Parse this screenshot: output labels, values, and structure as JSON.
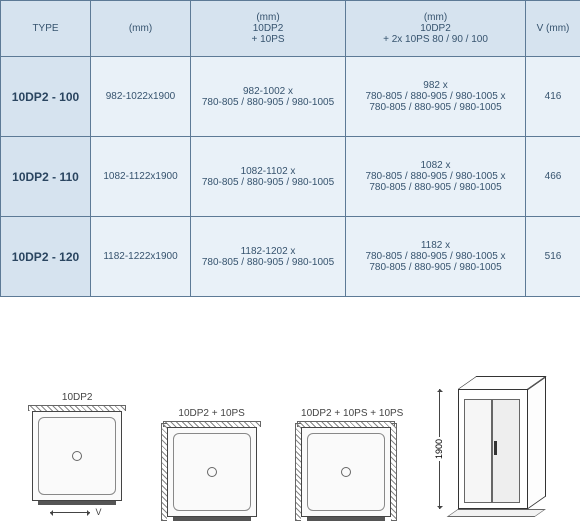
{
  "table": {
    "headers": {
      "type": "TYPE",
      "mm": "(mm)",
      "mm_10ps": "(mm)\n10DP2\n+ 10PS",
      "mm_2x10ps": "(mm)\n10DP2\n+ 2x 10PS 80 / 90 / 100",
      "v": "V (mm)"
    },
    "rows": [
      {
        "type": "10DP2 - 100",
        "mm": "982-1022x1900",
        "mm_10ps": "982-1002 x\n780-805 / 880-905 / 980-1005",
        "mm_2x10ps": "982 x\n780-805 / 880-905 / 980-1005 x\n780-805 / 880-905 / 980-1005",
        "v": "416"
      },
      {
        "type": "10DP2 - 110",
        "mm": "1082-1122x1900",
        "mm_10ps": "1082-1102 x\n780-805 / 880-905 / 980-1005",
        "mm_2x10ps": "1082 x\n780-805 / 880-905 / 980-1005 x\n780-805 / 880-905 / 980-1005",
        "v": "466"
      },
      {
        "type": "10DP2 - 120",
        "mm": "1182-1222x1900",
        "mm_10ps": "1182-1202 x\n780-805 / 880-905 / 980-1005",
        "mm_2x10ps": "1182 x\n780-805 / 880-905 / 980-1005 x\n780-805 / 880-905 / 980-1005",
        "v": "516"
      }
    ]
  },
  "diagrams": {
    "d1_label": "10DP2",
    "d2_label": "10DP2 + 10PS",
    "d3_label": "10DP2 + 10PS + 10PS",
    "v_letter": "V",
    "height": "1900"
  },
  "colors": {
    "border": "#5d7a96",
    "header_bg": "#d6e3ef",
    "cell_bg": "#e9f1f8",
    "text": "#36536e"
  }
}
